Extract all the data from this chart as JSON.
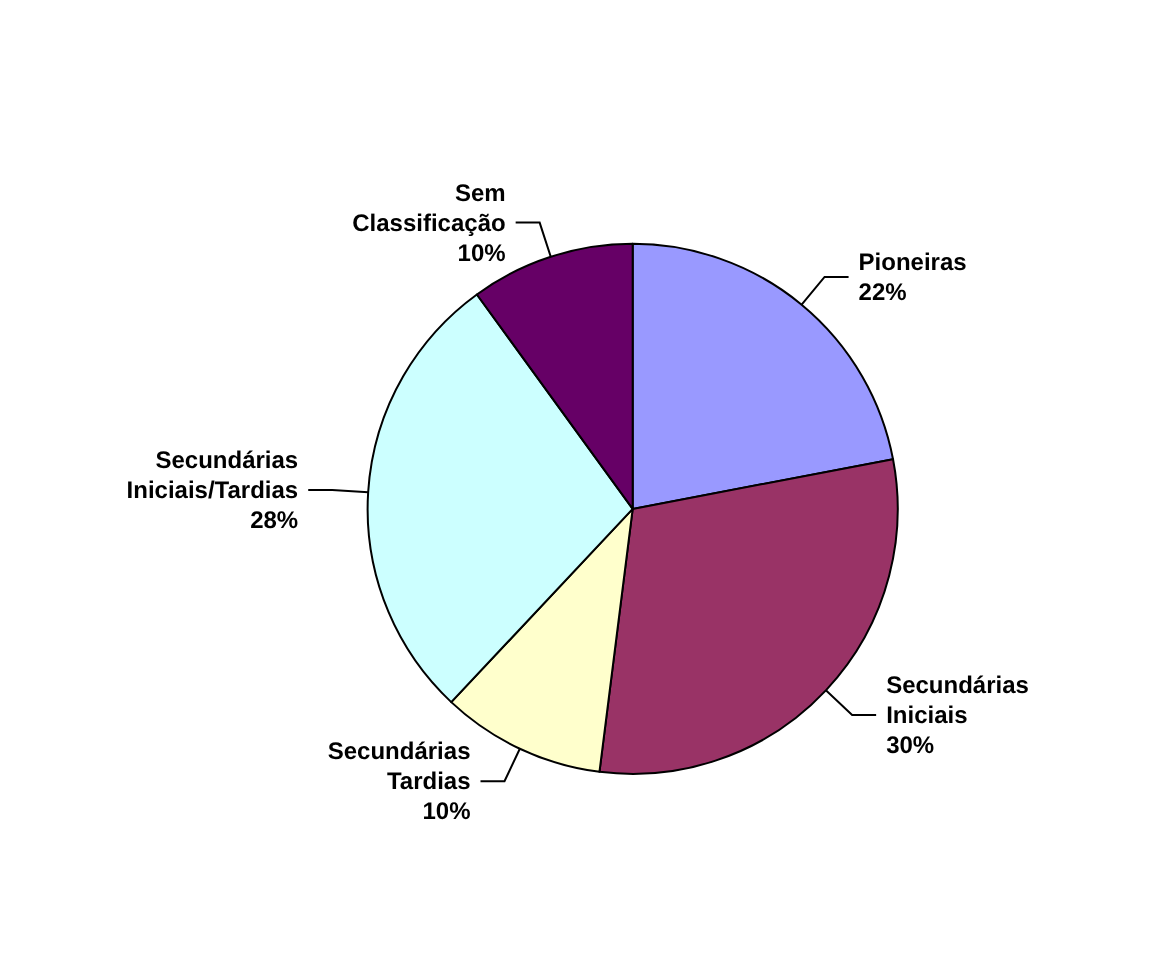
{
  "chart_data": {
    "type": "pie",
    "categories": [
      "Pioneiras",
      "Secundárias Iniciais",
      "Secundárias Tardias",
      "Secundárias Iniciais/Tardias",
      "Sem Classificação"
    ],
    "values": [
      22,
      30,
      10,
      28,
      10
    ],
    "colors": [
      "#9999ff",
      "#993366",
      "#ffffcc",
      "#ccffff",
      "#660066"
    ],
    "value_labels": [
      "22%",
      "30%",
      "10%",
      "28%",
      "10%"
    ],
    "legend": false
  }
}
